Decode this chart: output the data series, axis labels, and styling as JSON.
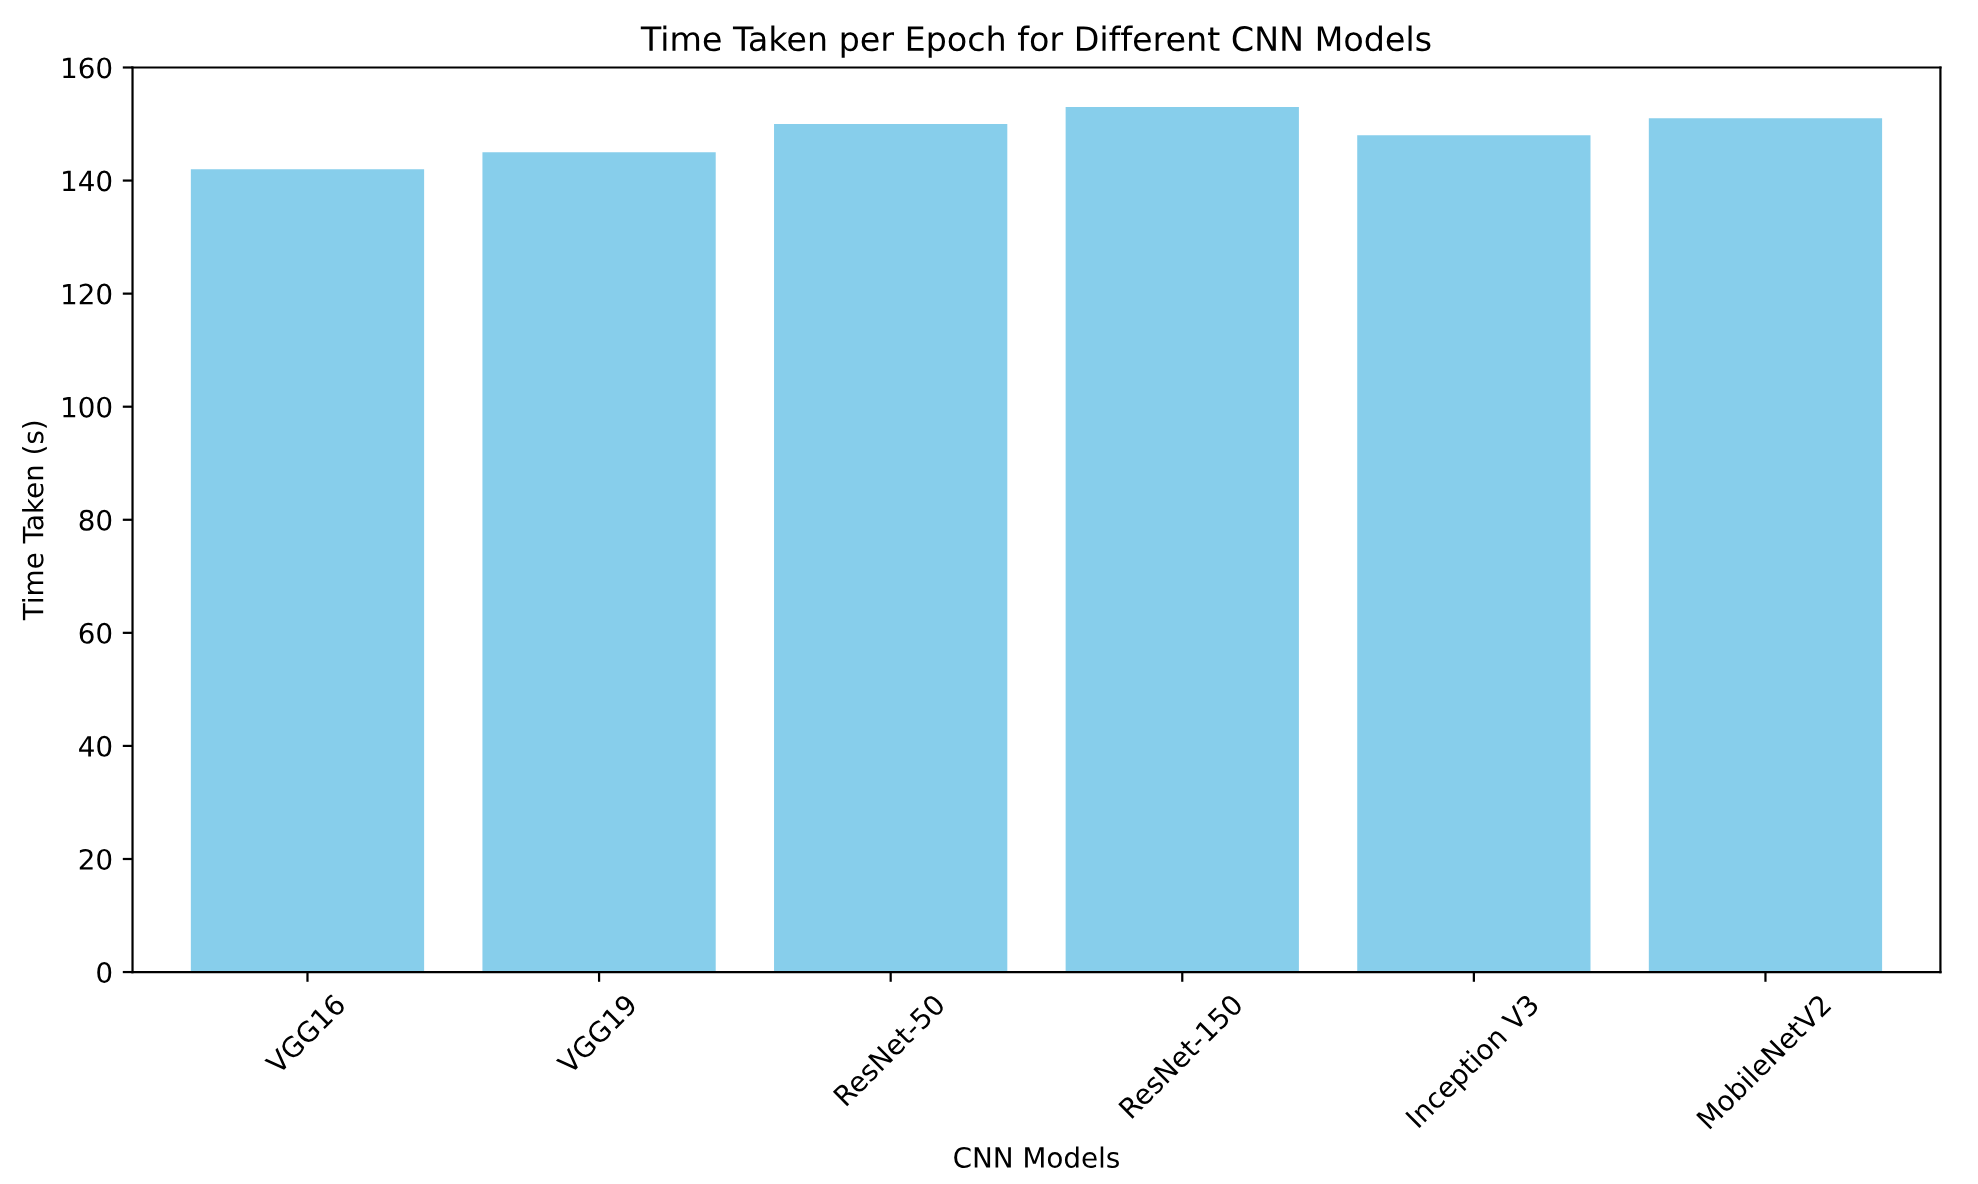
{
  "chart_data": {
    "type": "bar",
    "title": "Time Taken per Epoch for Different CNN Models",
    "xlabel": "CNN Models",
    "ylabel": "Time Taken (s)",
    "categories": [
      "VGG16",
      "VGG19",
      "ResNet-50",
      "ResNet-150",
      "Inception V3",
      "MobileNetV2"
    ],
    "values": [
      142,
      145,
      150,
      153,
      148,
      151
    ],
    "color": "#87ceeb",
    "ylim": [
      0,
      160
    ],
    "yticks": [
      0,
      20,
      40,
      60,
      80,
      100,
      120,
      140,
      160
    ],
    "grid": false
  }
}
